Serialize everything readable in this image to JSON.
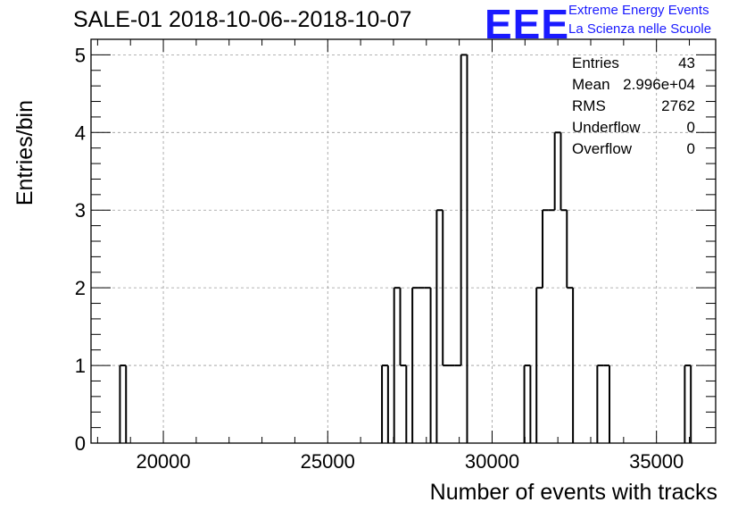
{
  "title": "SALE-01 2018-10-06--2018-10-07",
  "logo": {
    "mark": "EEE",
    "line1": "Extreme Energy Events",
    "line2": "La Scienza nelle Scuole",
    "color": "#1a1aff"
  },
  "stats": {
    "rows": [
      {
        "label": "Entries",
        "value": "43"
      },
      {
        "label": "Mean",
        "value": "2.996e+04"
      },
      {
        "label": "RMS",
        "value": "2762"
      },
      {
        "label": "Underflow",
        "value": "0"
      },
      {
        "label": "Overflow",
        "value": "0"
      }
    ]
  },
  "chart_data": {
    "type": "histogram",
    "title": "SALE-01 2018-10-06--2018-10-07",
    "xlabel": "Number of events with tracks",
    "ylabel": "Entries/bin",
    "xlim": [
      17800,
      36800
    ],
    "ylim": [
      0,
      5.2
    ],
    "x_ticks": [
      20000,
      25000,
      30000,
      35000
    ],
    "y_ticks": [
      0,
      1,
      2,
      3,
      4,
      5
    ],
    "grid": true,
    "bin_width": 185,
    "bins": [
      {
        "x": 18680,
        "count": 1
      },
      {
        "x": 26650,
        "count": 1
      },
      {
        "x": 26835,
        "count": 0
      },
      {
        "x": 27020,
        "count": 2
      },
      {
        "x": 27205,
        "count": 1
      },
      {
        "x": 27390,
        "count": 0
      },
      {
        "x": 27575,
        "count": 2
      },
      {
        "x": 27760,
        "count": 2
      },
      {
        "x": 27945,
        "count": 2
      },
      {
        "x": 28130,
        "count": 0
      },
      {
        "x": 28315,
        "count": 3
      },
      {
        "x": 28500,
        "count": 1
      },
      {
        "x": 28685,
        "count": 1
      },
      {
        "x": 28870,
        "count": 1
      },
      {
        "x": 29055,
        "count": 5
      },
      {
        "x": 30980,
        "count": 1
      },
      {
        "x": 31165,
        "count": 0
      },
      {
        "x": 31350,
        "count": 2
      },
      {
        "x": 31535,
        "count": 3
      },
      {
        "x": 31720,
        "count": 3
      },
      {
        "x": 31905,
        "count": 4
      },
      {
        "x": 32090,
        "count": 3
      },
      {
        "x": 32275,
        "count": 2
      },
      {
        "x": 33200,
        "count": 1
      },
      {
        "x": 33385,
        "count": 1
      },
      {
        "x": 35860,
        "count": 1
      }
    ],
    "line_color": "#000000",
    "grid_color": "#9a9a9a"
  }
}
